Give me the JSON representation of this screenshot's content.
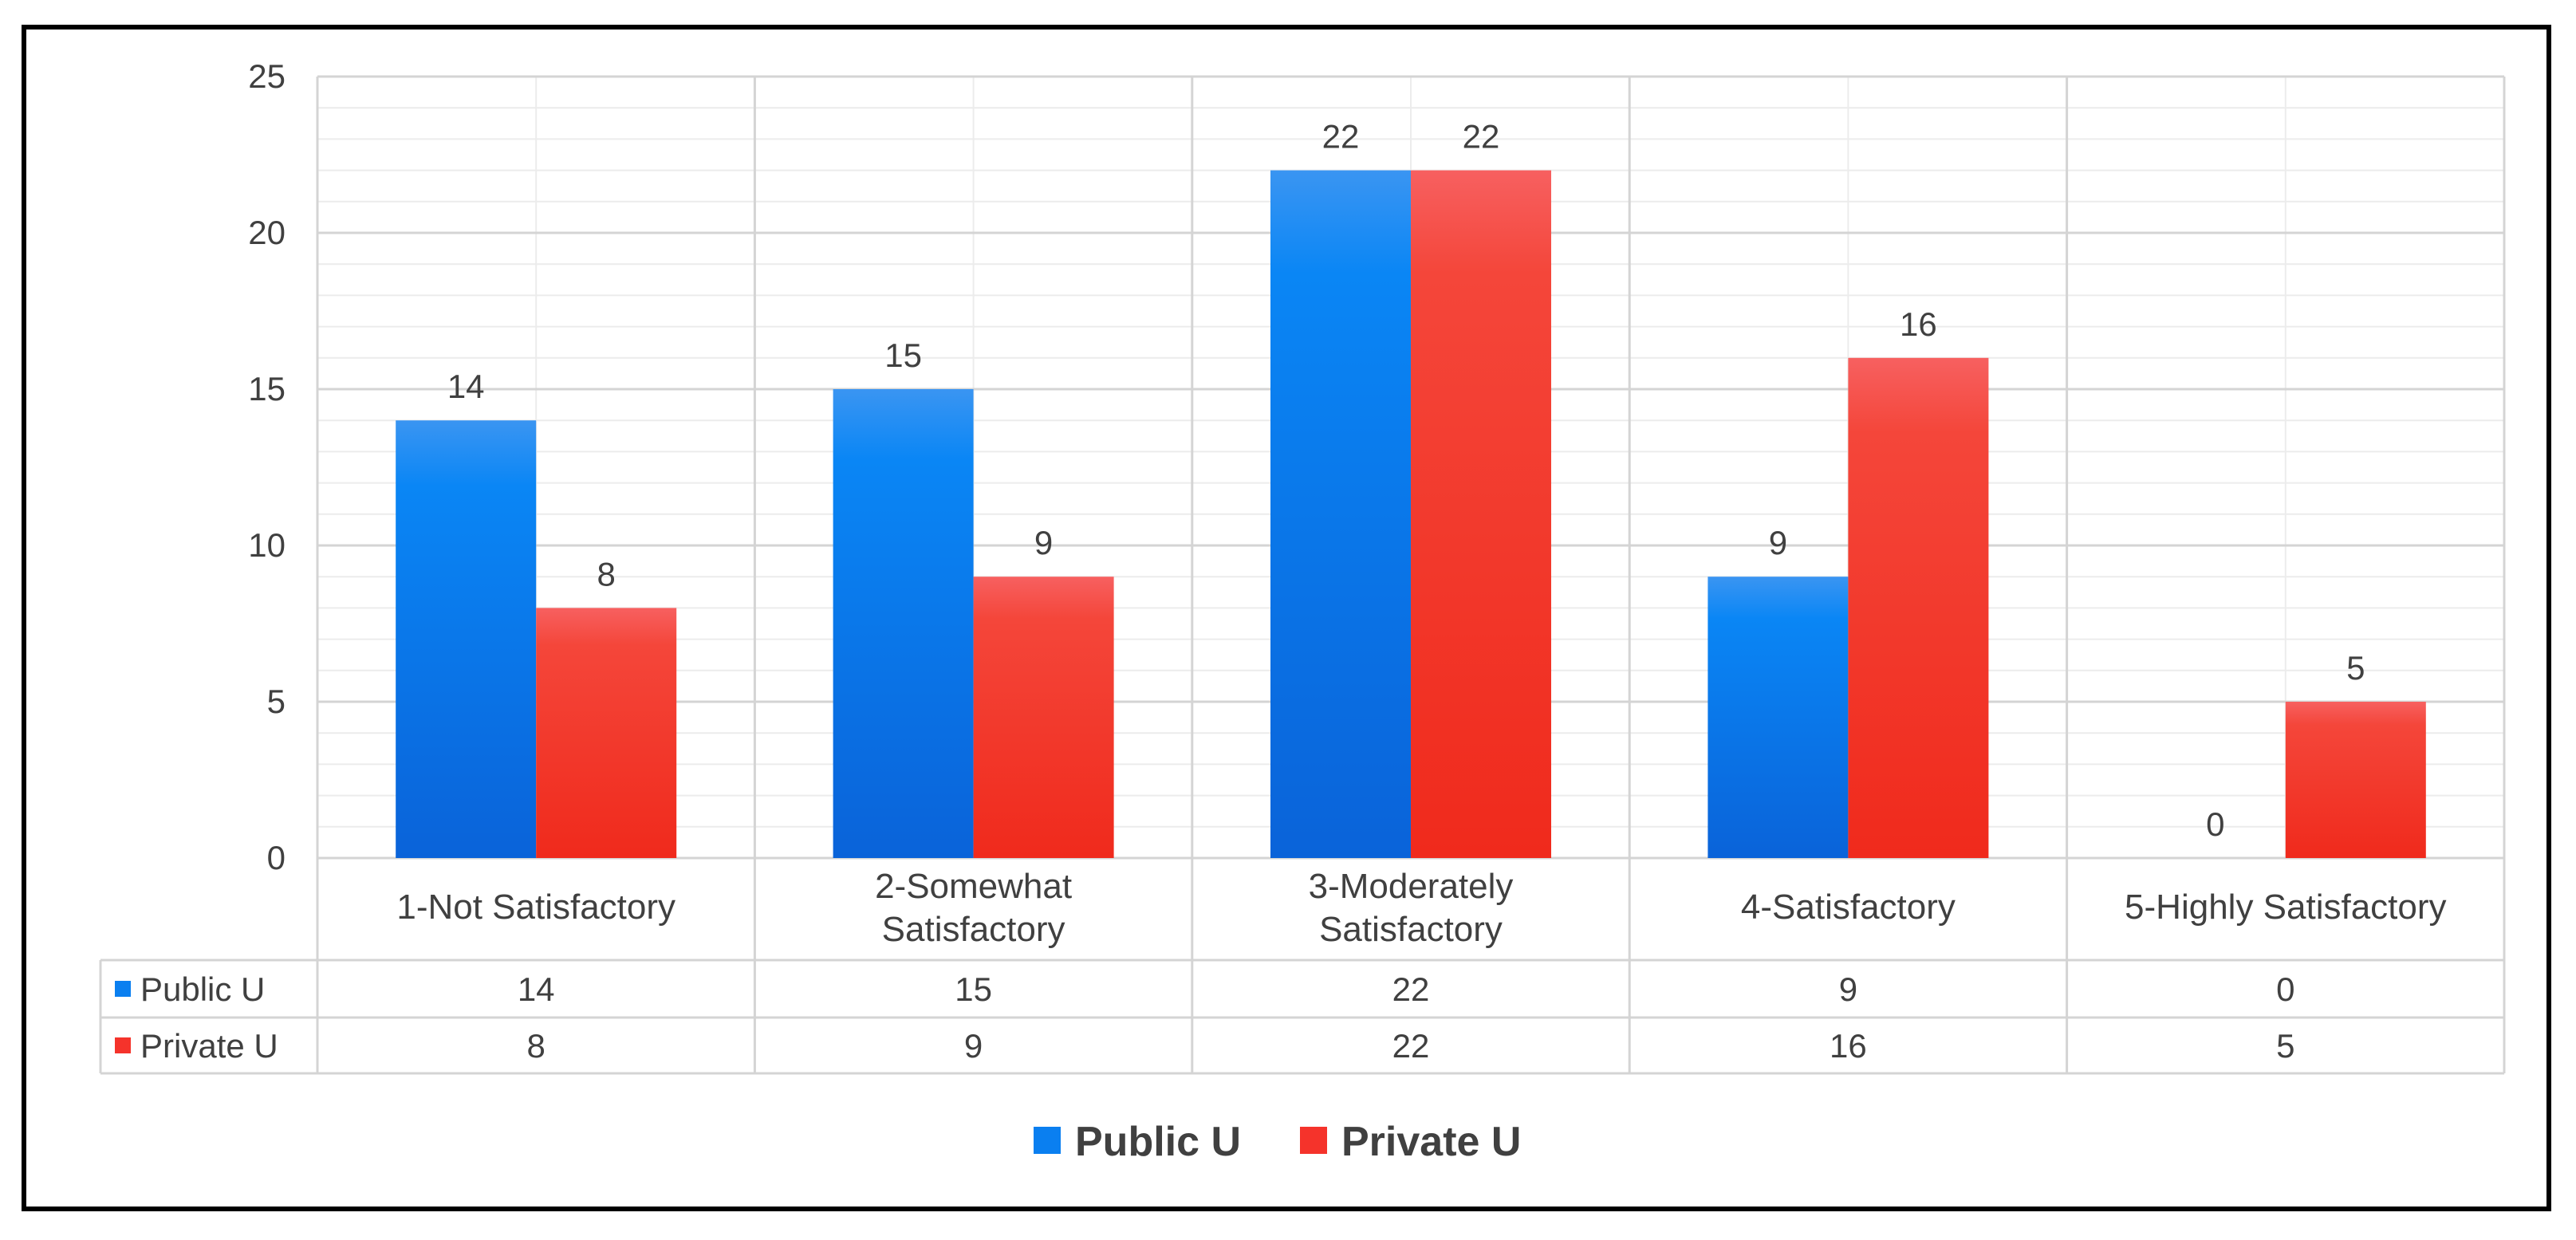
{
  "chart_data": {
    "type": "bar",
    "title": "",
    "xlabel": "",
    "ylabel": "",
    "ylim": [
      0,
      25
    ],
    "yticks": [
      0,
      5,
      10,
      15,
      20,
      25
    ],
    "grid": true,
    "categories": [
      [
        "1-Not Satisfactory"
      ],
      [
        "2-Somewhat",
        "Satisfactory"
      ],
      [
        "3-Moderately",
        "Satisfactory"
      ],
      [
        "4-Satisfactory"
      ],
      [
        "5-Highly Satisfactory"
      ]
    ],
    "series": [
      {
        "name": "Public U",
        "color": "#0a7ff0",
        "values": [
          14,
          15,
          22,
          9,
          0
        ]
      },
      {
        "name": "Private U",
        "color": "#f5332b",
        "values": [
          8,
          9,
          22,
          16,
          5
        ]
      }
    ],
    "data_table": true,
    "legend_position": "bottom"
  }
}
